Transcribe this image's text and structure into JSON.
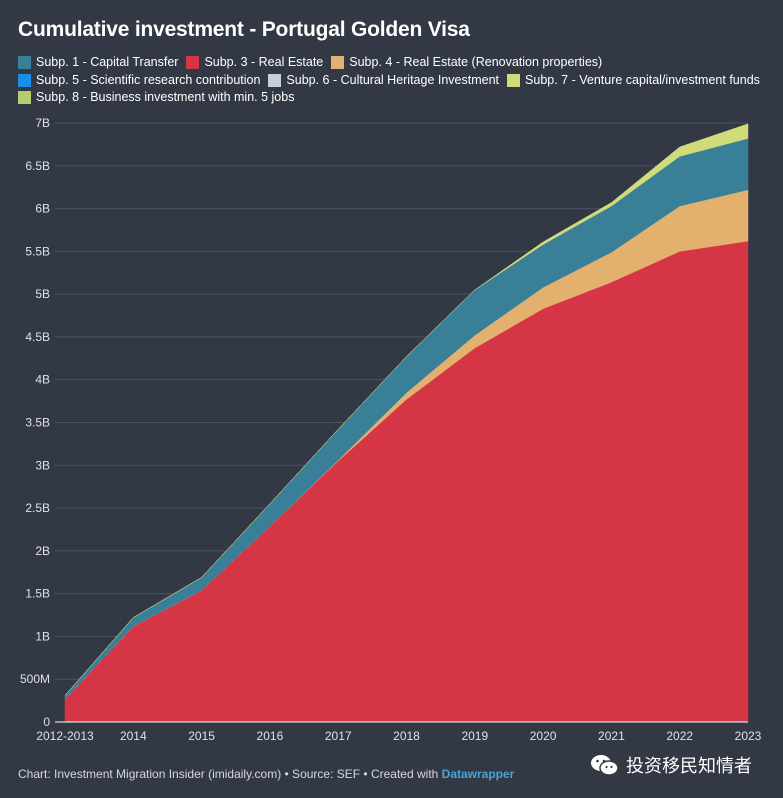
{
  "title": "Cumulative investment - Portugal Golden Visa",
  "legend": [
    {
      "label": "Subp. 1 - Capital Transfer",
      "color": "#3a7f98"
    },
    {
      "label": "Subp. 3 - Real Estate",
      "color": "#d63545"
    },
    {
      "label": "Subp. 4 - Real Estate (Renovation properties)",
      "color": "#e3b06e"
    },
    {
      "label": "Subp. 5 - Scientific research contribution",
      "color": "#1a8fea"
    },
    {
      "label": "Subp. 6 - Cultural Heritage Investment",
      "color": "#c5d0d8"
    },
    {
      "label": "Subp. 7 - Venture capital/investment funds",
      "color": "#d0dc7a"
    },
    {
      "label": "Subp. 8 - Business investment with min. 5 jobs",
      "color": "#b3cd6f"
    }
  ],
  "chart_data": {
    "type": "area",
    "stacked": true,
    "x": [
      "2012-2013",
      "2014",
      "2015",
      "2016",
      "2017",
      "2018",
      "2019",
      "2020",
      "2021",
      "2022",
      "2023"
    ],
    "y_ticks": [
      0,
      500000000,
      1000000000,
      1500000000,
      2000000000,
      2500000000,
      3000000000,
      3500000000,
      4000000000,
      4500000000,
      5000000000,
      5500000000,
      6000000000,
      6500000000,
      7000000000
    ],
    "y_tick_labels": [
      "0",
      "500M",
      "1B",
      "1.5B",
      "2B",
      "2.5B",
      "3B",
      "3.5B",
      "4B",
      "4.5B",
      "5B",
      "5.5B",
      "6B",
      "6.5B",
      "7B"
    ],
    "ylim": [
      0,
      7000000000
    ],
    "grid": true,
    "legend_position": "top",
    "series": [
      {
        "name": "Subp. 3 - Real Estate",
        "color": "#d63545",
        "values": [
          270000000,
          1120000000,
          1540000000,
          2290000000,
          3050000000,
          3770000000,
          4370000000,
          4830000000,
          5140000000,
          5500000000,
          5620000000
        ]
      },
      {
        "name": "Subp. 4 - Real Estate (Renovation properties)",
        "color": "#e3b06e",
        "values": [
          0,
          0,
          0,
          0,
          10000000,
          80000000,
          150000000,
          250000000,
          350000000,
          530000000,
          600000000
        ]
      },
      {
        "name": "Subp. 5 - Scientific research contribution",
        "color": "#1a8fea",
        "values": [
          0,
          0,
          0,
          0,
          0,
          0,
          0,
          0,
          0,
          0,
          0
        ]
      },
      {
        "name": "Subp. 6 - Cultural Heritage Investment",
        "color": "#c5d0d8",
        "values": [
          0,
          0,
          0,
          0,
          0,
          0,
          0,
          0,
          0,
          0,
          0
        ]
      },
      {
        "name": "Subp. 8 - Business investment with min. 5 jobs",
        "color": "#b3cd6f",
        "values": [
          0,
          0,
          0,
          0,
          0,
          0,
          0,
          0,
          0,
          0,
          0
        ]
      },
      {
        "name": "Subp. 1 - Capital Transfer",
        "color": "#3a7f98",
        "values": [
          40000000,
          100000000,
          150000000,
          260000000,
          360000000,
          420000000,
          530000000,
          500000000,
          540000000,
          580000000,
          600000000
        ]
      },
      {
        "name": "Subp. 7 - Venture capital/investment funds",
        "color": "#d0dc7a",
        "values": [
          0,
          0,
          0,
          0,
          0,
          0,
          0,
          30000000,
          40000000,
          110000000,
          170000000
        ]
      }
    ]
  },
  "footer": {
    "prefix": "Chart: Investment Migration Insider (imidaily.com) • Source: SEF • Created with ",
    "link": "Datawrapper"
  },
  "watermark": "投资移民知情者"
}
